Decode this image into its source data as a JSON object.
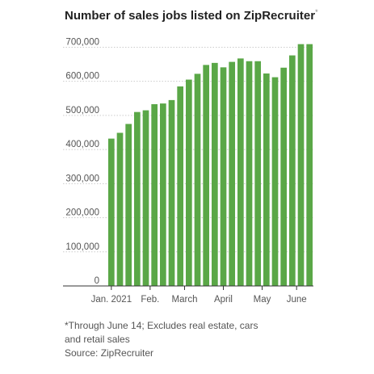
{
  "title": "Number of sales jobs listed on ZipRecruiter",
  "title_marker": "*",
  "notes": [
    "*Through June 14; Excludes real estate, cars",
    "and retail sales",
    "Source: ZipRecruiter"
  ],
  "colors": {
    "bar": "#5aa747",
    "grid": "#cccccc",
    "axis": "#333333",
    "text": "#555555"
  },
  "chart_data": {
    "type": "bar",
    "title": "Number of sales jobs listed on ZipRecruiter",
    "xlabel": "",
    "ylabel": "",
    "ylim": [
      0,
      720000
    ],
    "yticks": [
      0,
      100000,
      200000,
      300000,
      400000,
      500000,
      600000,
      700000
    ],
    "ytick_labels": [
      "0",
      "100,000",
      "200,000",
      "300,000",
      "400,000",
      "500,000",
      "600,000",
      "700,000"
    ],
    "x_tick_labels": [
      {
        "label": "Jan. 2021",
        "at_bar": 0
      },
      {
        "label": "Feb.",
        "at_bar": 4.5
      },
      {
        "label": "March",
        "at_bar": 8.5
      },
      {
        "label": "April",
        "at_bar": 13
      },
      {
        "label": "May",
        "at_bar": 17.5
      },
      {
        "label": "June",
        "at_bar": 21.5
      }
    ],
    "grid": true,
    "values": [
      432000,
      449000,
      475000,
      510000,
      515000,
      533000,
      535000,
      545000,
      585000,
      605000,
      622000,
      648000,
      654000,
      641000,
      657000,
      667000,
      659000,
      659000,
      623000,
      612000,
      640000,
      676000,
      709000,
      709000
    ]
  }
}
